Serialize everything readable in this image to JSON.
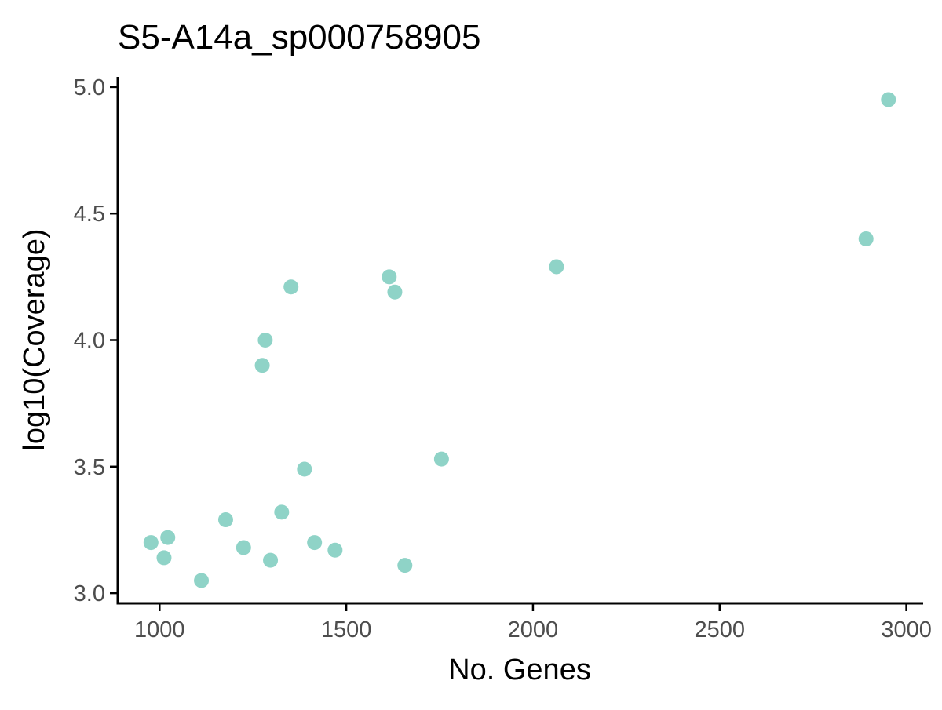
{
  "chart_data": {
    "type": "scatter",
    "title": "S5-A14a_sp000758905",
    "xlabel": "No. Genes",
    "ylabel": "log10(Coverage)",
    "xlim": [
      888,
      3045
    ],
    "ylim": [
      2.96,
      5.04
    ],
    "xticks": [
      1000,
      1500,
      2000,
      2500,
      3000
    ],
    "yticks": [
      3.0,
      3.5,
      4.0,
      4.5,
      5.0
    ],
    "xtick_labels": [
      "1000",
      "1500",
      "2000",
      "2500",
      "3000"
    ],
    "ytick_labels": [
      "3.0",
      "3.5",
      "4.0",
      "4.5",
      "5.0"
    ],
    "grid": false,
    "legend": "none",
    "point_color": "#8fd3c7",
    "points": [
      {
        "x": 2952,
        "y": 4.95
      },
      {
        "x": 2892,
        "y": 4.4
      },
      {
        "x": 2063,
        "y": 4.29
      },
      {
        "x": 1615,
        "y": 4.25
      },
      {
        "x": 1630,
        "y": 4.19
      },
      {
        "x": 1352,
        "y": 4.21
      },
      {
        "x": 1283,
        "y": 4.0
      },
      {
        "x": 1275,
        "y": 3.9
      },
      {
        "x": 1755,
        "y": 3.53
      },
      {
        "x": 1388,
        "y": 3.49
      },
      {
        "x": 1327,
        "y": 3.32
      },
      {
        "x": 1177,
        "y": 3.29
      },
      {
        "x": 1415,
        "y": 3.2
      },
      {
        "x": 1225,
        "y": 3.18
      },
      {
        "x": 1470,
        "y": 3.17
      },
      {
        "x": 1297,
        "y": 3.13
      },
      {
        "x": 1657,
        "y": 3.11
      },
      {
        "x": 977,
        "y": 3.2
      },
      {
        "x": 1022,
        "y": 3.22
      },
      {
        "x": 1012,
        "y": 3.14
      },
      {
        "x": 1112,
        "y": 3.05
      }
    ]
  }
}
